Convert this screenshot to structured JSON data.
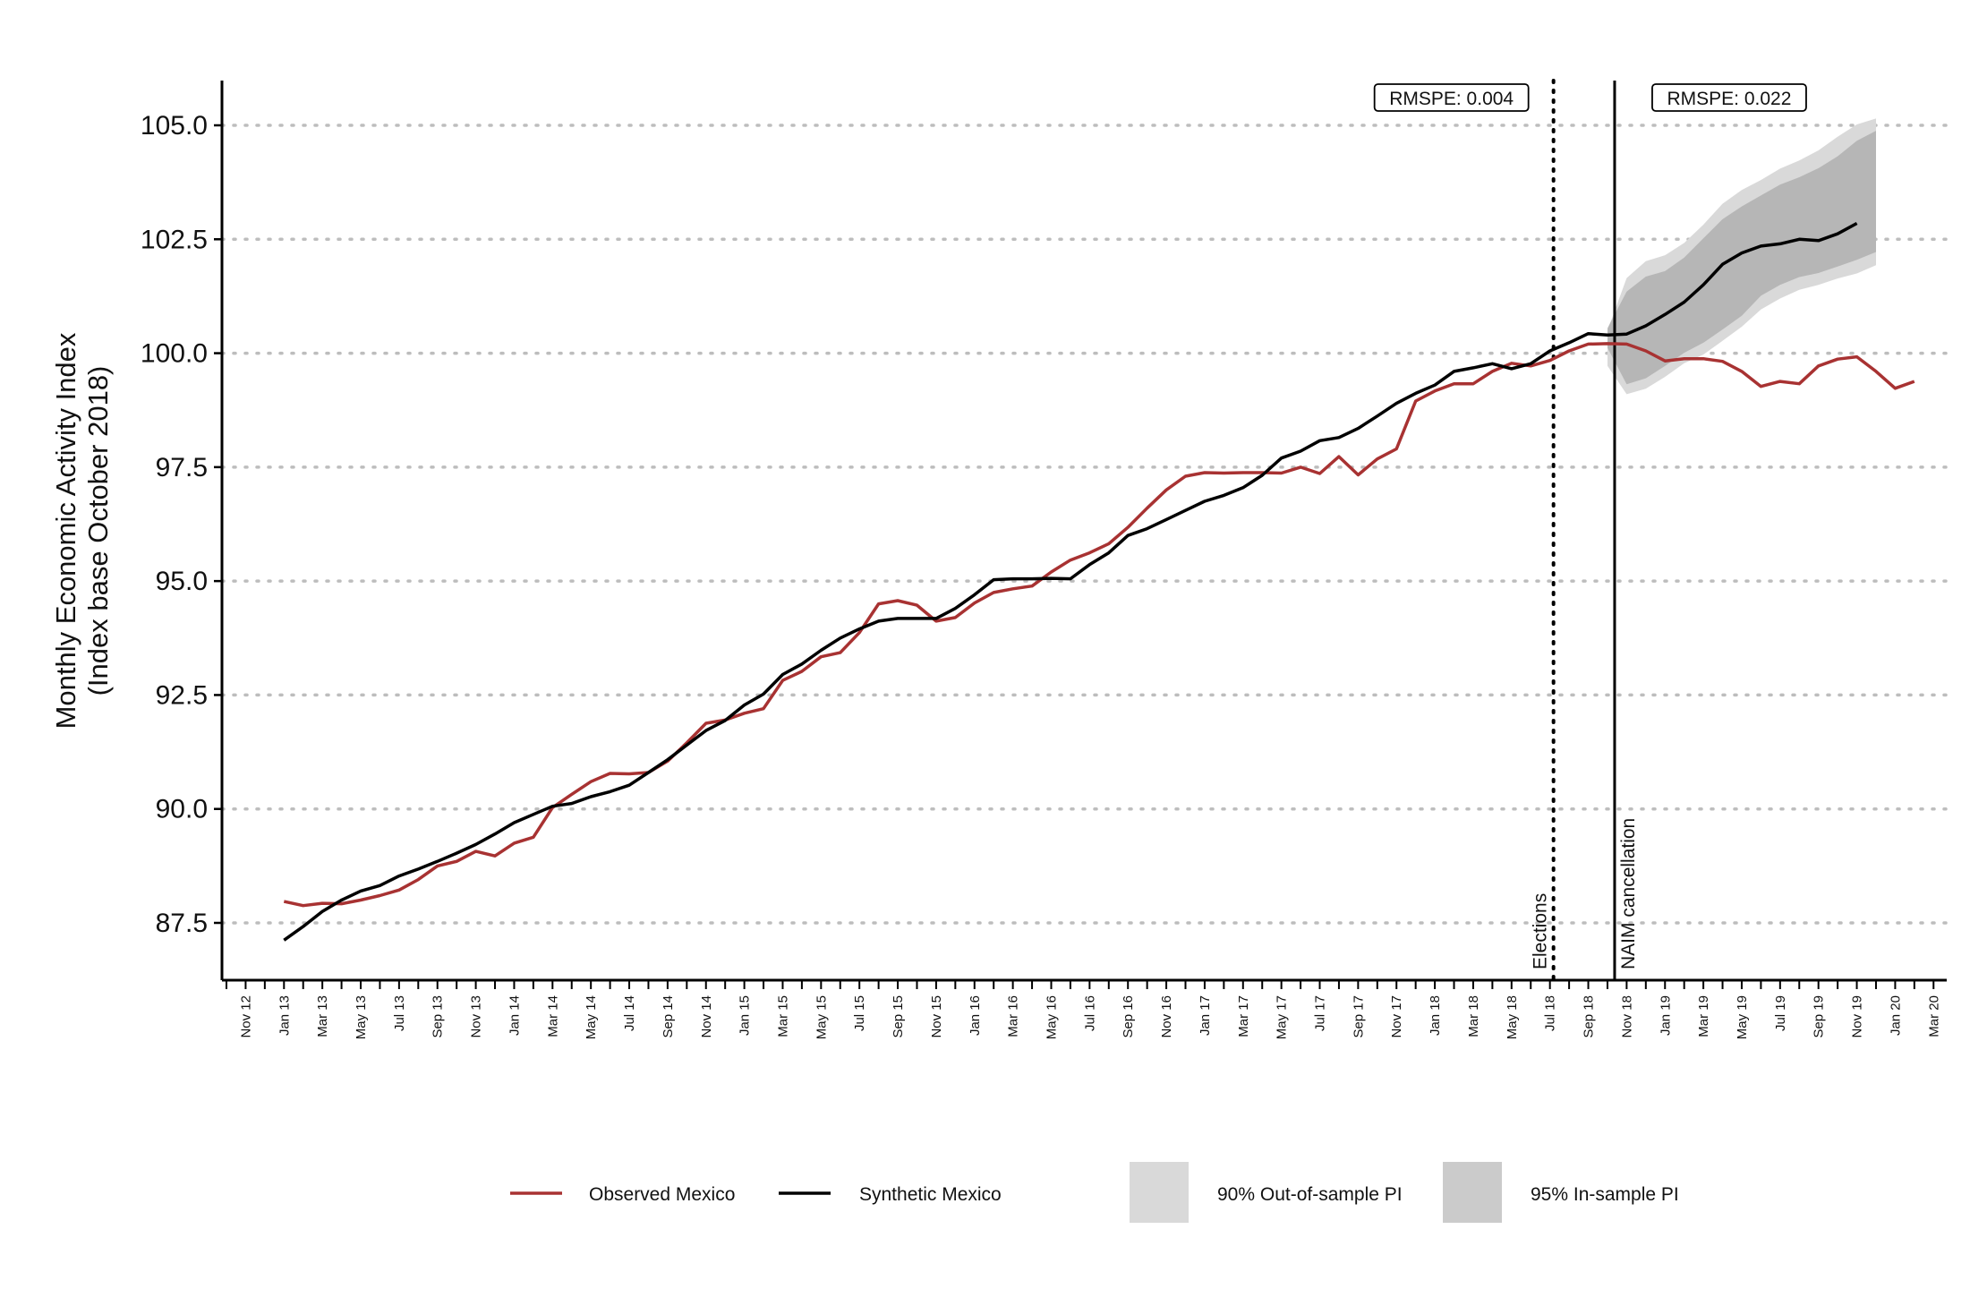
{
  "chart_data": {
    "type": "line",
    "ylabel_line1": "Monthly Economic Activity Index",
    "ylabel_line2": "(Index base October 2018)",
    "ylim": [
      86.2,
      106.0
    ],
    "yticks": [
      87.5,
      90.0,
      92.5,
      95.0,
      97.5,
      100.0,
      102.5,
      105.0
    ],
    "ytick_labels": [
      "87.5",
      "90.0",
      "92.5",
      "95.0",
      "97.5",
      "100.0",
      "102.5",
      "105.0"
    ],
    "grid": "horizontal dotted",
    "x_start": "2012-10",
    "x_end": "2020-03",
    "x_minor_ticks": "monthly",
    "x_tick_labels": [
      "Nov 12",
      "Jan 13",
      "Mar 13",
      "May 13",
      "Jul 13",
      "Sep 13",
      "Nov 13",
      "Jan 14",
      "Mar 14",
      "May 14",
      "Jul 14",
      "Sep 14",
      "Nov 14",
      "Jan 15",
      "Mar 15",
      "May 15",
      "Jul 15",
      "Sep 15",
      "Nov 15",
      "Jan 16",
      "Mar 16",
      "May 16",
      "Jul 16",
      "Sep 16",
      "Nov 16",
      "Jan 17",
      "Mar 17",
      "May 17",
      "Jul 17",
      "Sep 17",
      "Nov 17",
      "Jan 18",
      "Mar 18",
      "May 18",
      "Jul 18",
      "Sep 18",
      "Nov 18",
      "Jan 19",
      "Mar 19",
      "May 19",
      "Jul 19",
      "Sep 19",
      "Nov 19",
      "Jan 20",
      "Mar 20"
    ],
    "series_start": "2013-01",
    "series": [
      {
        "name": "Observed Mexico",
        "color": "#a83232",
        "values": [
          87.97,
          87.88,
          87.93,
          87.92,
          88.0,
          88.1,
          88.22,
          88.45,
          88.75,
          88.85,
          89.07,
          88.97,
          89.25,
          89.38,
          90.03,
          90.32,
          90.6,
          90.78,
          90.77,
          90.8,
          91.05,
          91.45,
          91.88,
          91.95,
          92.1,
          92.2,
          92.82,
          93.02,
          93.34,
          93.43,
          93.87,
          94.5,
          94.57,
          94.47,
          94.12,
          94.2,
          94.52,
          94.75,
          94.83,
          94.89,
          95.2,
          95.46,
          95.62,
          95.82,
          96.18,
          96.6,
          97.0,
          97.3,
          97.38,
          97.37,
          97.38,
          97.38,
          97.37,
          97.5,
          97.36,
          97.73,
          97.33,
          97.68,
          97.9,
          98.95,
          99.17,
          99.33,
          99.33,
          99.6,
          99.78,
          99.72,
          99.84,
          100.05,
          100.2,
          100.21,
          100.2,
          100.05,
          99.83,
          99.88,
          99.88,
          99.82,
          99.6,
          99.27,
          99.38,
          99.33,
          99.72,
          99.87,
          99.92,
          99.6,
          99.23,
          99.38
        ]
      },
      {
        "name": "Synthetic Mexico",
        "color": "#000000",
        "values": [
          87.12,
          87.42,
          87.75,
          88.0,
          88.2,
          88.32,
          88.53,
          88.68,
          88.85,
          89.03,
          89.22,
          89.45,
          89.7,
          89.88,
          90.06,
          90.12,
          90.27,
          90.38,
          90.52,
          90.8,
          91.08,
          91.4,
          91.72,
          91.94,
          92.28,
          92.52,
          92.95,
          93.18,
          93.48,
          93.75,
          93.95,
          94.12,
          94.18,
          94.18,
          94.18,
          94.4,
          94.7,
          95.03,
          95.05,
          95.05,
          95.06,
          95.05,
          95.36,
          95.62,
          96.0,
          96.15,
          96.35,
          96.55,
          96.75,
          96.88,
          97.05,
          97.32,
          97.7,
          97.85,
          98.08,
          98.15,
          98.35,
          98.62,
          98.9,
          99.12,
          99.3,
          99.6,
          99.68,
          99.77,
          99.66,
          99.77,
          100.05,
          100.23,
          100.43,
          100.4,
          100.42,
          100.6,
          100.85,
          101.12,
          101.5,
          101.95,
          102.2,
          102.35,
          102.4,
          102.5,
          102.47,
          102.62,
          102.85
        ]
      }
    ],
    "band_start": "2018-10",
    "band_90_outofsample": {
      "lower": [
        99.72,
        99.1,
        99.22,
        99.48,
        99.78,
        99.97,
        100.27,
        100.58,
        100.96,
        101.2,
        101.39,
        101.5,
        101.64,
        101.75,
        101.93
      ],
      "upper": [
        100.5,
        101.65,
        102.02,
        102.15,
        102.42,
        102.82,
        103.28,
        103.58,
        103.8,
        104.05,
        104.23,
        104.45,
        104.75,
        105.02,
        105.15
      ]
    },
    "band_95_insample": {
      "lower": [
        100.12,
        99.32,
        99.45,
        99.72,
        100.01,
        100.23,
        100.52,
        100.82,
        101.26,
        101.5,
        101.67,
        101.76,
        101.9,
        102.05,
        102.22
      ],
      "upper": [
        100.55,
        101.35,
        101.68,
        101.8,
        102.1,
        102.52,
        102.94,
        103.22,
        103.46,
        103.7,
        103.86,
        104.06,
        104.32,
        104.66,
        104.88
      ]
    },
    "vlines": [
      {
        "date": "2018-07",
        "style": "dotted",
        "label": "Elections"
      },
      {
        "date": "2018-10",
        "style": "solid",
        "label": "NAIM cancellation"
      }
    ],
    "annotations": [
      {
        "text": "RMSPE: 0.004",
        "position": "left of Elections line, top"
      },
      {
        "text": "RMSPE: 0.022",
        "position": "right of NAIM line, top"
      }
    ],
    "legend_position": "bottom",
    "legend": [
      {
        "label": "Observed Mexico",
        "kind": "line",
        "color": "#a83232"
      },
      {
        "label": "Synthetic Mexico",
        "kind": "line",
        "color": "#000000"
      },
      {
        "label": "90% Out-of-sample PI",
        "kind": "fill",
        "color": "#d9d9d9"
      },
      {
        "label": "95% In-sample PI",
        "kind": "fill",
        "color": "#cbcbcb"
      }
    ]
  }
}
